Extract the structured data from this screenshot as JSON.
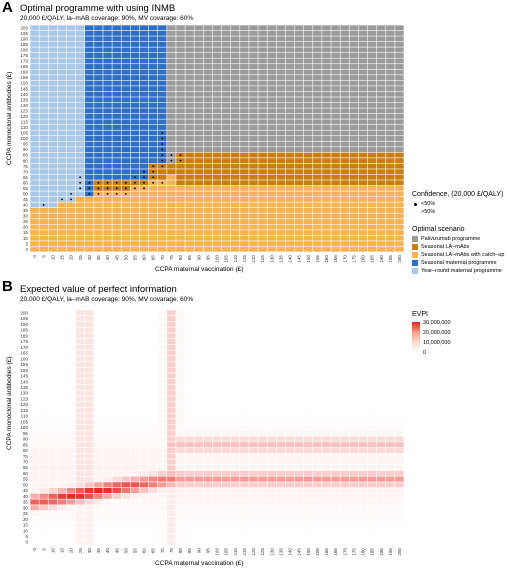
{
  "panel_a": {
    "letter": "A",
    "title": "Optimal programme with using INMB",
    "subtitle": "20,000 £/QALY, la–mAB coverage: 90%, MV covarage: 60%",
    "legend_conf_title": "Confidence, (20,000 £/QALY)",
    "legend_conf_items": [
      "<50%",
      ">50%"
    ],
    "legend_opt_title": "Optimal scenario",
    "legend_opt_items": [
      "Palivizumab programme",
      "Seasonal LA–mAbs",
      "Seasonal LA–mAbs with catch–up",
      "Seasonal maternal programme",
      "Year–round maternal programme"
    ]
  },
  "panel_b": {
    "letter": "B",
    "title": "Expected value of perfect information",
    "subtitle": "20,000 £/QALY, la–mAB coverage: 90%, MV covarage: 60%",
    "legend_title": "EVPI",
    "legend_labels": [
      "30,000,000",
      "20,000,000",
      "10,000,000",
      "0"
    ]
  },
  "axes": {
    "xlabel": "CCPA maternal vaccination (£)",
    "ylabel": "CCPA monoclonal antibodies (£)",
    "ticks": [
      "0",
      "5",
      "10",
      "15",
      "20",
      "25",
      "30",
      "35",
      "40",
      "45",
      "50",
      "55",
      "60",
      "65",
      "70",
      "75",
      "80",
      "85",
      "90",
      "95",
      "100",
      "105",
      "110",
      "115",
      "120",
      "125",
      "130",
      "135",
      "140",
      "145",
      "150",
      "155",
      "160",
      "165",
      "170",
      "175",
      "180",
      "185",
      "190",
      "195",
      "200"
    ]
  },
  "colors": {
    "palivizumab": "#9b9b9b",
    "seasonal_la": "#c97e12",
    "seasonal_catchup": "#f6b253",
    "seasonal_maternal": "#2f6fc6",
    "yearround_maternal": "#a9c7e6",
    "evpi_high": "#e8221c"
  },
  "chart_data": [
    {
      "type": "heatmap",
      "title": "Optimal programme with using INMB",
      "xlabel": "CCPA maternal vaccination (£)",
      "ylabel": "CCPA monoclonal antibodies (£)",
      "x_range": [
        0,
        200
      ],
      "y_range": [
        0,
        200
      ],
      "step": 5,
      "regions": [
        {
          "scenario": "Seasonal LA–mAbs with catch–up",
          "rule": "y <= boundary(x) for x < 80; y <= 55 for x >= 80"
        },
        {
          "scenario": "Seasonal LA–mAbs",
          "rule": "y in 60–85 for x >= 80; partially for x 35–75"
        },
        {
          "scenario": "Palivizumab programme",
          "rule": "y >= 90 for x >= 80; y >= 80 for x 75"
        },
        {
          "scenario": "Seasonal maternal programme",
          "rule": "x 30–75 above boundary"
        },
        {
          "scenario": "Year–round maternal programme",
          "rule": "x 0–25 above boundary"
        }
      ],
      "boundary_low": [
        [
          0,
          35
        ],
        [
          5,
          35
        ],
        [
          10,
          35
        ],
        [
          15,
          40
        ],
        [
          20,
          40
        ],
        [
          25,
          45
        ],
        [
          30,
          45
        ],
        [
          35,
          50
        ],
        [
          40,
          50
        ],
        [
          45,
          50
        ],
        [
          50,
          50
        ],
        [
          55,
          55
        ],
        [
          60,
          55
        ],
        [
          65,
          60
        ],
        [
          70,
          60
        ],
        [
          75,
          65
        ],
        [
          80,
          55
        ]
      ],
      "low_confidence_points": [
        [
          5,
          40
        ],
        [
          15,
          45
        ],
        [
          20,
          50
        ],
        [
          20,
          45
        ],
        [
          25,
          55
        ],
        [
          25,
          60
        ],
        [
          25,
          65
        ],
        [
          30,
          50
        ],
        [
          30,
          55
        ],
        [
          30,
          60
        ],
        [
          35,
          50
        ],
        [
          35,
          55
        ],
        [
          35,
          60
        ],
        [
          40,
          50
        ],
        [
          40,
          55
        ],
        [
          40,
          60
        ],
        [
          45,
          50
        ],
        [
          45,
          55
        ],
        [
          45,
          60
        ],
        [
          50,
          50
        ],
        [
          50,
          55
        ],
        [
          50,
          60
        ],
        [
          55,
          55
        ],
        [
          55,
          60
        ],
        [
          55,
          65
        ],
        [
          60,
          55
        ],
        [
          60,
          60
        ],
        [
          60,
          65
        ],
        [
          60,
          70
        ],
        [
          65,
          60
        ],
        [
          65,
          65
        ],
        [
          65,
          70
        ],
        [
          65,
          75
        ],
        [
          70,
          60
        ],
        [
          70,
          75
        ],
        [
          70,
          80
        ],
        [
          70,
          85
        ],
        [
          70,
          90
        ],
        [
          70,
          95
        ],
        [
          70,
          100
        ],
        [
          70,
          105
        ],
        [
          75,
          80
        ],
        [
          75,
          85
        ],
        [
          80,
          80
        ],
        [
          80,
          85
        ]
      ],
      "legend": [
        "Palivizumab programme",
        "Seasonal LA–mAbs",
        "Seasonal LA–mAbs with catch–up",
        "Seasonal maternal programme",
        "Year–round maternal programme"
      ]
    },
    {
      "type": "heatmap",
      "title": "Expected value of perfect information",
      "xlabel": "CCPA maternal vaccination (£)",
      "ylabel": "CCPA monoclonal antibodies (£)",
      "x_range": [
        0,
        200
      ],
      "y_range": [
        0,
        200
      ],
      "step": 5,
      "value_range": [
        0,
        30000000
      ],
      "ridges": [
        {
          "description": "diagonal band from (0,35) to (75,55)",
          "peak": 30000000
        },
        {
          "description": "horizontal band y≈55 for x>=80",
          "value": 14000000
        },
        {
          "description": "horizontal band y≈80–90 for x>=75",
          "value": 8000000
        },
        {
          "description": "vertical band x≈25–30",
          "value": 6000000
        },
        {
          "description": "vertical band x≈75",
          "value": 7000000
        }
      ]
    }
  ]
}
